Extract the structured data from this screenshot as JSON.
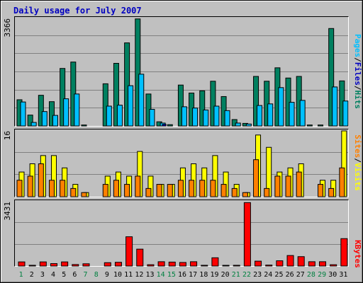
{
  "title": "Daily usage for July 2007",
  "colors": {
    "background": "#c0c0c0",
    "plot_bg": "#c0c0c0",
    "grid": "#808080",
    "title": "#0000c0",
    "hits": "#008060",
    "files": "#00c0ff",
    "pages": "#00c0ff",
    "sites": "#ff8000",
    "visits": "#ffff00",
    "kbytes": "#ff0000",
    "weekday_label": "#000000",
    "weekend_label": "#008040"
  },
  "chart_data": [
    {
      "type": "bar",
      "panel": "hits-files-pages",
      "ymax_label": "3366",
      "ylim": [
        0,
        3366
      ],
      "legend": {
        "pages": "Pages",
        "sep1": "/",
        "files": "Files",
        "sep2": "/",
        "hits": "Hits"
      },
      "categories": [
        "1",
        "2",
        "3",
        "4",
        "5",
        "6",
        "7",
        "8",
        "9",
        "10",
        "11",
        "12",
        "13",
        "14",
        "15",
        "16",
        "17",
        "18",
        "19",
        "20",
        "21",
        "22",
        "23",
        "24",
        "25",
        "26",
        "27",
        "28",
        "29",
        "30",
        "31"
      ],
      "series": [
        {
          "name": "Hits",
          "values": [
            820,
            340,
            960,
            760,
            1800,
            2000,
            30,
            0,
            1320,
            1960,
            2600,
            3350,
            1000,
            130,
            40,
            1280,
            1030,
            1100,
            1400,
            920,
            200,
            80,
            1550,
            1400,
            1820,
            1500,
            1550,
            30,
            30,
            3050,
            1410
          ]
        },
        {
          "name": "Files",
          "values": [
            750,
            110,
            450,
            330,
            850,
            1000,
            0,
            0,
            620,
            650,
            1260,
            1620,
            520,
            90,
            0,
            600,
            560,
            500,
            620,
            480,
            90,
            60,
            640,
            690,
            1200,
            740,
            800,
            0,
            0,
            1220,
            780
          ]
        },
        {
          "name": "Pages",
          "values": [
            0,
            0,
            0,
            0,
            0,
            0,
            0,
            0,
            0,
            0,
            0,
            0,
            0,
            50,
            0,
            0,
            0,
            0,
            0,
            0,
            0,
            0,
            0,
            0,
            0,
            0,
            0,
            0,
            0,
            0,
            0
          ]
        }
      ]
    },
    {
      "type": "bar",
      "panel": "sites-visits",
      "ymax_label": "16",
      "ylim": [
        0,
        16
      ],
      "legend": {
        "sites": "Sites",
        "sep": "/",
        "visits": "Visits"
      },
      "categories": [
        "1",
        "2",
        "3",
        "4",
        "5",
        "6",
        "7",
        "8",
        "9",
        "10",
        "11",
        "12",
        "13",
        "14",
        "15",
        "16",
        "17",
        "18",
        "19",
        "20",
        "21",
        "22",
        "23",
        "24",
        "25",
        "26",
        "27",
        "28",
        "29",
        "30",
        "31"
      ],
      "series": [
        {
          "name": "Visits",
          "values": [
            6,
            8,
            10,
            10,
            7,
            3,
            1,
            0,
            5,
            6,
            5,
            11,
            5,
            3,
            3,
            7,
            8,
            7,
            10,
            6,
            3,
            1,
            15,
            12,
            6,
            7,
            8,
            0,
            4,
            4,
            16
          ]
        },
        {
          "name": "Sites",
          "values": [
            4,
            5,
            8,
            4,
            4,
            2,
            1,
            0,
            3,
            4,
            3,
            5,
            2,
            3,
            3,
            4,
            4,
            4,
            4,
            3,
            2,
            1,
            9,
            2,
            5,
            5,
            6,
            0,
            3,
            2,
            7
          ]
        }
      ]
    },
    {
      "type": "bar",
      "panel": "kbytes",
      "ymax_label": "3431",
      "ylim": [
        0,
        3431
      ],
      "legend": {
        "kbytes": "KBytes"
      },
      "categories": [
        "1",
        "2",
        "3",
        "4",
        "5",
        "6",
        "7",
        "8",
        "9",
        "10",
        "11",
        "12",
        "13",
        "14",
        "15",
        "16",
        "17",
        "18",
        "19",
        "20",
        "21",
        "22",
        "23",
        "24",
        "25",
        "26",
        "27",
        "28",
        "29",
        "30",
        "31"
      ],
      "series": [
        {
          "name": "KBytes",
          "values": [
            220,
            40,
            220,
            130,
            220,
            80,
            120,
            0,
            180,
            200,
            1560,
            900,
            70,
            230,
            210,
            190,
            230,
            40,
            440,
            30,
            40,
            3380,
            260,
            50,
            280,
            560,
            500,
            230,
            230,
            70,
            1460
          ]
        }
      ]
    }
  ],
  "x_labels": [
    "1",
    "2",
    "3",
    "4",
    "5",
    "6",
    "7",
    "8",
    "9",
    "10",
    "11",
    "12",
    "13",
    "14",
    "15",
    "16",
    "17",
    "18",
    "19",
    "20",
    "21",
    "22",
    "23",
    "24",
    "25",
    "26",
    "27",
    "28",
    "29",
    "30",
    "31"
  ],
  "weekend_days": [
    "1",
    "7",
    "8",
    "14",
    "15",
    "21",
    "22",
    "28",
    "29"
  ]
}
